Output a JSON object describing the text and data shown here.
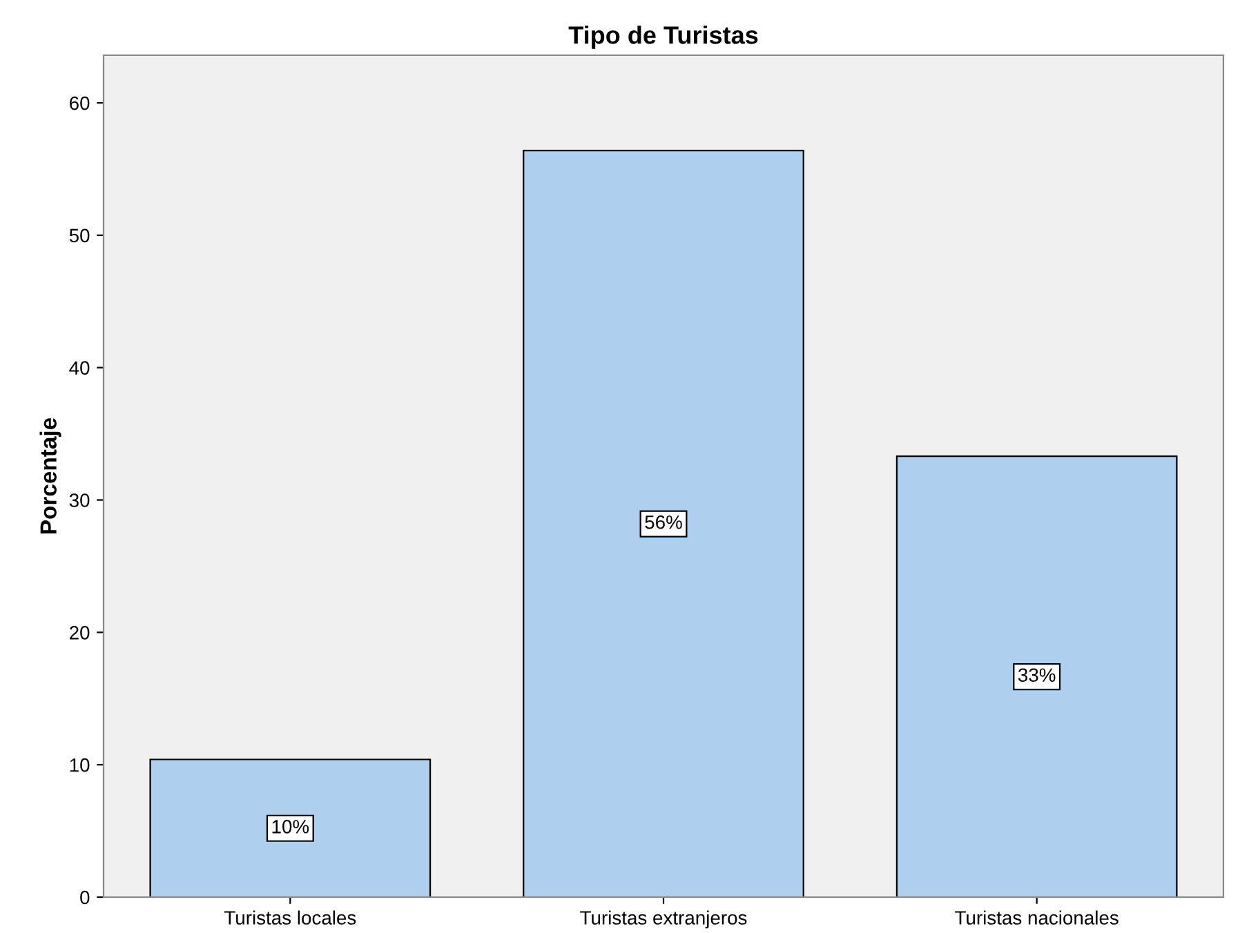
{
  "chart_data": {
    "type": "bar",
    "title": "Tipo de Turistas",
    "ylabel": "Porcentaje",
    "categories": [
      "Turistas locales",
      "Turistas extranjeros",
      "Turistas nacionales"
    ],
    "values": [
      10.4,
      56.4,
      33.3
    ],
    "value_labels": [
      "10%",
      "56%",
      "33%"
    ],
    "color": "#aed0ee",
    "ylim": [
      0,
      63.6
    ],
    "yticks": [
      0,
      10,
      20,
      30,
      40,
      50,
      60
    ],
    "grid": false
  }
}
